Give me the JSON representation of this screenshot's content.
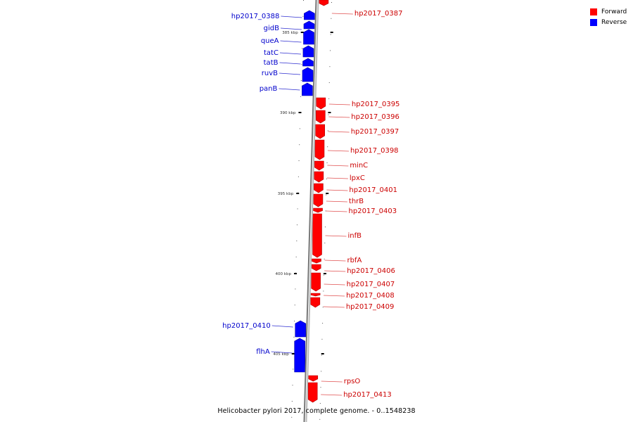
{
  "colors": {
    "forward": "#ff0000",
    "reverse": "#0000ff",
    "forward_label": "#cc0000",
    "reverse_label": "#0000cc",
    "backbone": "#999999"
  },
  "legend": [
    {
      "label": "Forward",
      "color": "#ff0000"
    },
    {
      "label": "Reverse",
      "color": "#0000ff"
    }
  ],
  "caption": "Helicobacter pylori 2017, complete genome. - 0..1548238",
  "ticks": [
    "385 kbp",
    "390 kbp",
    "395 kbp",
    "400 kbp",
    "405 kbp"
  ],
  "genes": [
    {
      "name": "hp2017_0387",
      "strand": "forward"
    },
    {
      "name": "hp2017_0388",
      "strand": "reverse"
    },
    {
      "name": "gidB",
      "strand": "reverse"
    },
    {
      "name": "queA",
      "strand": "reverse"
    },
    {
      "name": "tatC",
      "strand": "reverse"
    },
    {
      "name": "tatB",
      "strand": "reverse"
    },
    {
      "name": "ruvB",
      "strand": "reverse"
    },
    {
      "name": "panB",
      "strand": "reverse"
    },
    {
      "name": "hp2017_0395",
      "strand": "forward"
    },
    {
      "name": "hp2017_0396",
      "strand": "forward"
    },
    {
      "name": "hp2017_0397",
      "strand": "forward"
    },
    {
      "name": "hp2017_0398",
      "strand": "forward"
    },
    {
      "name": "minC",
      "strand": "forward"
    },
    {
      "name": "lpxC",
      "strand": "forward"
    },
    {
      "name": "hp2017_0401",
      "strand": "forward"
    },
    {
      "name": "thrB",
      "strand": "forward"
    },
    {
      "name": "hp2017_0403",
      "strand": "forward"
    },
    {
      "name": "infB",
      "strand": "forward"
    },
    {
      "name": "rbfA",
      "strand": "forward"
    },
    {
      "name": "hp2017_0406",
      "strand": "forward"
    },
    {
      "name": "hp2017_0407",
      "strand": "forward"
    },
    {
      "name": "hp2017_0408",
      "strand": "forward"
    },
    {
      "name": "hp2017_0409",
      "strand": "forward"
    },
    {
      "name": "hp2017_0410",
      "strand": "reverse"
    },
    {
      "name": "flhA",
      "strand": "reverse"
    },
    {
      "name": "rpsO",
      "strand": "forward"
    },
    {
      "name": "hp2017_0413",
      "strand": "forward"
    }
  ]
}
